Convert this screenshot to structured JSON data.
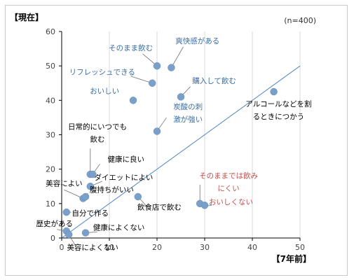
{
  "chart_data": {
    "type": "scatter",
    "y_title": "【現在】",
    "x_title": "【7年前】",
    "note": "(n=400)",
    "xlim": [
      0,
      50
    ],
    "ylim": [
      0,
      60
    ],
    "x_ticks": [
      "0",
      "10",
      "20",
      "30",
      "40",
      "50"
    ],
    "y_ticks": [
      "0",
      "10",
      "20",
      "30",
      "40",
      "50",
      "60"
    ],
    "grid": "vertical-only",
    "reference_line": "y = x",
    "colors": {
      "point": "#7a9fc9",
      "line": "#4e86c2",
      "label_blue": "#3a6ea5",
      "label_black": "#000000",
      "label_red": "#c0504d",
      "grid": "#d9d9d9",
      "axis": "#000000"
    },
    "points": [
      {
        "x": 20,
        "y": 50,
        "name": "そのまま飲む"
      },
      {
        "x": 23,
        "y": 49.5,
        "name": "爽快感がある"
      },
      {
        "x": 19,
        "y": 45,
        "name": "リフレッシュできる"
      },
      {
        "x": 25,
        "y": 41,
        "name": "購入して飲む"
      },
      {
        "x": 15,
        "y": 40,
        "name": "おいしい"
      },
      {
        "x": 44.5,
        "y": 42.5,
        "name": "アルコールなどを割るときにつかう"
      },
      {
        "x": 20,
        "y": 31,
        "name": "炭酸の刺激が強い"
      },
      {
        "x": 6,
        "y": 18.5,
        "name": "日常的にいつでも飲む"
      },
      {
        "x": 6.5,
        "y": 18.5,
        "name": "健康に良い"
      },
      {
        "x": 6,
        "y": 15,
        "name": "ダイエットによい"
      },
      {
        "x": 4.5,
        "y": 11.5,
        "name": "美容によい"
      },
      {
        "x": 5,
        "y": 12,
        "name": "腹持ちがいい"
      },
      {
        "x": 16,
        "y": 12,
        "name": "飲食店で飲む"
      },
      {
        "x": 29,
        "y": 10,
        "name": "そのままでは飲みにくい"
      },
      {
        "x": 30,
        "y": 9.5,
        "name": "おいしくない"
      },
      {
        "x": 1,
        "y": 7.5,
        "name": "自分で作る"
      },
      {
        "x": 1,
        "y": 2,
        "name": "歴史がある"
      },
      {
        "x": 1.5,
        "y": 1,
        "name": "美容によくない"
      },
      {
        "x": 5,
        "y": 1.5,
        "name": "健康によくない"
      }
    ],
    "labels": [
      {
        "lines": [
          "そのまま飲む"
        ],
        "x": 14.5,
        "y": 54.5,
        "color": "blue",
        "anchor": "middle"
      },
      {
        "lines": [
          "爽快感がある"
        ],
        "x": 28.5,
        "y": 56.5,
        "color": "blue",
        "anchor": "middle"
      },
      {
        "lines": [
          "リフレッシュできる"
        ],
        "x": 8.5,
        "y": 47.5,
        "color": "blue",
        "anchor": "middle"
      },
      {
        "lines": [
          "購入して飲む"
        ],
        "x": 32,
        "y": 45,
        "color": "blue",
        "anchor": "middle"
      },
      {
        "lines": [
          "おいしい"
        ],
        "x": 9,
        "y": 42,
        "color": "blue",
        "anchor": "middle"
      },
      {
        "lines": [
          "アルコールなどを割",
          "るときにつかう"
        ],
        "x": 45.5,
        "y": 38.2,
        "color": "black",
        "anchor": "middle"
      },
      {
        "lines": [
          "炭酸の刺",
          "激が強い"
        ],
        "x": 26.5,
        "y": 37.4,
        "color": "blue",
        "anchor": "middle"
      },
      {
        "lines": [
          "日常的にいつでも",
          "飲む"
        ],
        "x": 7.5,
        "y": 31.6,
        "color": "black",
        "anchor": "middle"
      },
      {
        "lines": [
          "健康に良い"
        ],
        "x": 13.5,
        "y": 22.2,
        "color": "black",
        "anchor": "middle"
      },
      {
        "lines": [
          "ダイエットによい"
        ],
        "x": 13,
        "y": 16.9,
        "color": "black",
        "anchor": "middle"
      },
      {
        "lines": [
          "美容によい"
        ],
        "x": 0.5,
        "y": 15.2,
        "color": "black",
        "anchor": "middle"
      },
      {
        "lines": [
          "腹持ちがいい"
        ],
        "x": 10.5,
        "y": 13.3,
        "color": "black",
        "anchor": "middle"
      },
      {
        "lines": [
          "飲食店で飲む"
        ],
        "x": 20.5,
        "y": 8.2,
        "color": "black",
        "anchor": "middle"
      },
      {
        "lines": [
          "そのままでは飲み",
          "にくい"
        ],
        "x": 35,
        "y": 17.4,
        "color": "red",
        "anchor": "middle"
      },
      {
        "lines": [
          "おいしくない"
        ],
        "x": 35.5,
        "y": 9.8,
        "color": "red",
        "anchor": "middle"
      },
      {
        "lines": [
          "自分で作る"
        ],
        "x": 6,
        "y": 6.5,
        "color": "black",
        "anchor": "middle"
      },
      {
        "lines": [
          "歴史がある"
        ],
        "x": -1.5,
        "y": 3.5,
        "color": "black",
        "anchor": "middle"
      },
      {
        "lines": [
          "健康によくない"
        ],
        "x": 12,
        "y": 2.3,
        "color": "black",
        "anchor": "middle"
      },
      {
        "lines": [
          "美容によくない"
        ],
        "x": 6.5,
        "y": -3.5,
        "color": "black",
        "anchor": "middle"
      }
    ],
    "leaders": [
      {
        "from": [
          17,
          53.5
        ],
        "to": [
          20,
          50
        ]
      },
      {
        "from": [
          25.5,
          55.5
        ],
        "to": [
          23,
          49.5
        ]
      },
      {
        "from": [
          14.5,
          47
        ],
        "to": [
          19,
          45
        ]
      },
      {
        "from": [
          27,
          44
        ],
        "to": [
          25,
          41
        ]
      },
      {
        "from": [
          44.5,
          41.5
        ],
        "to": [
          44.5,
          42.5
        ]
      },
      {
        "from": [
          22,
          35
        ],
        "to": [
          20,
          31
        ]
      },
      {
        "from": [
          6,
          26
        ],
        "to": [
          6,
          18.5
        ]
      },
      {
        "from": [
          8,
          21.5
        ],
        "to": [
          6.5,
          18.5
        ]
      },
      {
        "from": [
          8.5,
          16.5
        ],
        "to": [
          6,
          15
        ]
      },
      {
        "from": [
          0.5,
          14
        ],
        "to": [
          4.5,
          11.5
        ]
      },
      {
        "from": [
          5.5,
          13
        ],
        "to": [
          5,
          12
        ]
      },
      {
        "from": [
          16,
          12
        ],
        "to": [
          18,
          9
        ]
      },
      {
        "from": [
          29,
          15.5
        ],
        "to": [
          29,
          10
        ]
      },
      {
        "from": [
          31.5,
          9.5
        ],
        "to": [
          30,
          9.5
        ]
      },
      {
        "from": [
          2,
          7.5
        ],
        "to": [
          1,
          7.5
        ]
      },
      {
        "from": [
          -1,
          2.5
        ],
        "to": [
          1,
          2
        ]
      },
      {
        "from": [
          7.5,
          1.8
        ],
        "to": [
          5,
          1.5
        ]
      },
      {
        "from": [
          3,
          -2.5
        ],
        "to": [
          1.5,
          1
        ]
      }
    ]
  }
}
